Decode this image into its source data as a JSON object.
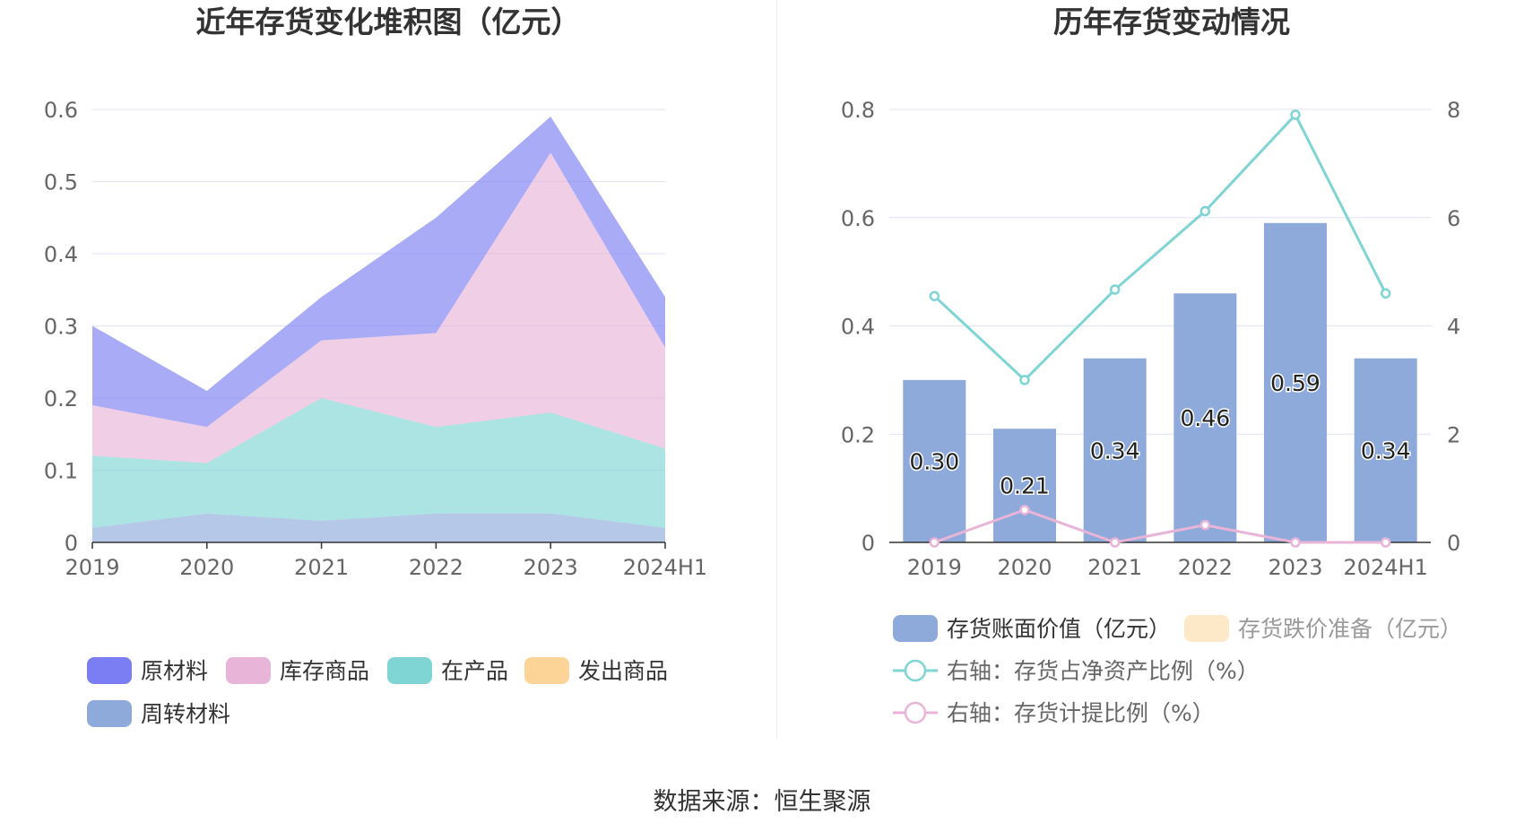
{
  "source": "数据来源：恒生聚源",
  "chart_data": [
    {
      "type": "area",
      "stacked": true,
      "title": "近年存货变化堆积图（亿元）",
      "categories": [
        "2019",
        "2020",
        "2021",
        "2022",
        "2023",
        "2024H1"
      ],
      "ylim": [
        0,
        0.6
      ],
      "yticks": [
        "0",
        "0.1",
        "0.2",
        "0.3",
        "0.4",
        "0.5",
        "0.6"
      ],
      "grid": true,
      "legend_position": "bottom",
      "series": [
        {
          "name": "周转材料",
          "color": "#8eaadb",
          "values": [
            0.02,
            0.04,
            0.03,
            0.04,
            0.04,
            0.02
          ]
        },
        {
          "name": "在产品",
          "color": "#7fd4d4",
          "values": [
            0.1,
            0.07,
            0.17,
            0.12,
            0.14,
            0.11
          ]
        },
        {
          "name": "发出商品",
          "color": "#fcd497",
          "values": [
            0,
            0,
            0,
            0,
            0,
            0
          ]
        },
        {
          "name": "库存商品",
          "color": "#e8b4d8",
          "values": [
            0.07,
            0.05,
            0.08,
            0.13,
            0.36,
            0.14
          ]
        },
        {
          "name": "原材料",
          "color": "#7b7ef2",
          "values": [
            0.11,
            0.05,
            0.06,
            0.16,
            0.05,
            0.07
          ]
        }
      ],
      "legend_order": [
        "原材料",
        "库存商品",
        "在产品",
        "发出商品",
        "周转材料"
      ]
    },
    {
      "type": "bar+line",
      "title": "历年存货变动情况",
      "categories": [
        "2019",
        "2020",
        "2021",
        "2022",
        "2023",
        "2024H1"
      ],
      "ylim": [
        0,
        0.8
      ],
      "yticks": [
        "0",
        "0.2",
        "0.4",
        "0.6",
        "0.8"
      ],
      "y2lim": [
        0,
        8
      ],
      "y2ticks": [
        "0",
        "2",
        "4",
        "6",
        "8"
      ],
      "grid": true,
      "legend_position": "bottom",
      "bars": [
        {
          "name": "存货账面价值（亿元）",
          "color": "#8eaadb",
          "values": [
            0.3,
            0.21,
            0.34,
            0.46,
            0.59,
            0.34
          ],
          "labels": [
            "0.30",
            "0.21",
            "0.34",
            "0.46",
            "0.59",
            "0.34"
          ]
        },
        {
          "name": "存货跌价准备（亿元）",
          "color": "#fde8c8",
          "values": [
            0,
            0,
            0,
            0,
            0,
            0
          ]
        }
      ],
      "lines": [
        {
          "name": "右轴：存货占净资产比例（%）",
          "color": "#7fd4d4",
          "axis": "right",
          "values": [
            4.55,
            3.0,
            4.67,
            6.12,
            7.9,
            4.6
          ]
        },
        {
          "name": "右轴：存货计提比例（%）",
          "color": "#e8b4d8",
          "axis": "right",
          "values": [
            0,
            0.6,
            0,
            0.32,
            0,
            0
          ]
        }
      ]
    }
  ]
}
